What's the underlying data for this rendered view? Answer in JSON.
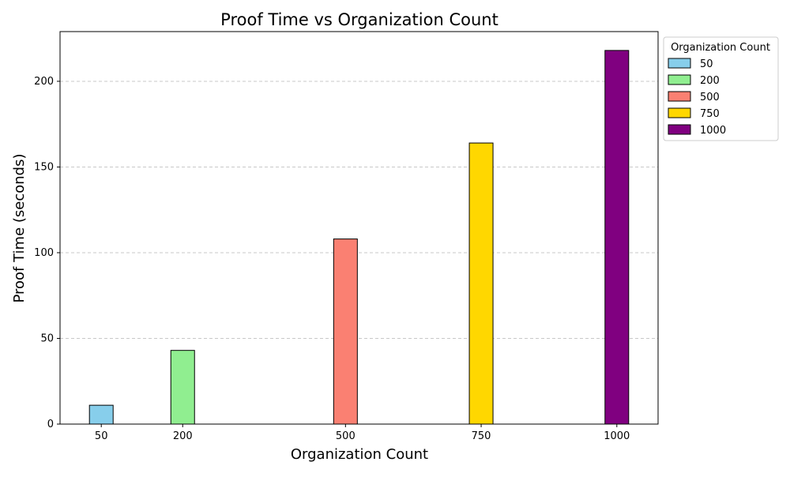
{
  "chart_data": {
    "type": "bar",
    "title": "Proof Time vs Organization Count",
    "xlabel": "Organization Count",
    "ylabel": "Proof Time (seconds)",
    "x": [
      50,
      200,
      500,
      750,
      1000
    ],
    "categories": [
      "50",
      "200",
      "500",
      "750",
      "1000"
    ],
    "values": [
      11,
      43,
      108,
      164,
      218
    ],
    "colors": [
      "#87ceeb",
      "#90ee90",
      "#fa8072",
      "#ffd700",
      "#800080"
    ],
    "xlim": [
      -26,
      1076
    ],
    "ylim": [
      0,
      229
    ],
    "yticks": [
      0,
      50,
      100,
      150,
      200
    ],
    "grid": "y-dashed",
    "legend": {
      "title": "Organization Count",
      "placement": "outside-top-right",
      "entries": [
        "50",
        "200",
        "500",
        "750",
        "1000"
      ]
    }
  }
}
